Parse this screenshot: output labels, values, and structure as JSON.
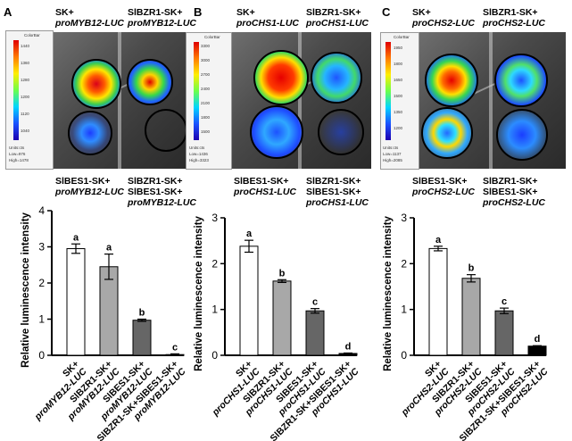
{
  "panels": [
    {
      "id": "A",
      "top_left": [
        "SK+",
        "proMYB12-LUC"
      ],
      "top_right": [
        "SlBZR1-SK+",
        "proMYB12-LUC"
      ],
      "bottom_left": [
        "SlBES1-SK+",
        "proMYB12-LUC"
      ],
      "bottom_right": [
        "SlBZR1-SK+",
        "SlBES1-SK+",
        "proMYB12-LUC"
      ],
      "colorbar": {
        "title": "ColorBar",
        "ticks": [
          "1440",
          "1360",
          "1280",
          "1200",
          "1120",
          "1040"
        ],
        "unit": "Units:cts",
        "low": "Low=976",
        "high": "High=1478"
      }
    },
    {
      "id": "B",
      "top_left": [
        "SK+",
        "proCHS1-LUC"
      ],
      "top_right": [
        "SlBZR1-SK+",
        "proCHS1-LUC"
      ],
      "bottom_left": [
        "SlBES1-SK+",
        "proCHS1-LUC"
      ],
      "bottom_right": [
        "SlBZR1-SK+",
        "SlBES1-SK+",
        "proCHS1-LUC"
      ],
      "colorbar": {
        "title": "ColorBar",
        "ticks": [
          "3300",
          "3000",
          "2700",
          "2400",
          "2100",
          "1800",
          "1500"
        ],
        "unit": "Units:cts",
        "low": "Low=1436",
        "high": "High=3323"
      }
    },
    {
      "id": "C",
      "top_left": [
        "SK+",
        "proCHS2-LUC"
      ],
      "top_right": [
        "SlBZR1-SK+",
        "proCHS2-LUC"
      ],
      "bottom_left": [
        "SlBES1-SK+",
        "proCHS2-LUC"
      ],
      "bottom_right": [
        "SlBZR1-SK+",
        "SlBES1-SK+",
        "proCHS2-LUC"
      ],
      "colorbar": {
        "title": "ColorBar",
        "ticks": [
          "1950",
          "1800",
          "1650",
          "1500",
          "1350",
          "1200"
        ],
        "unit": "Units:cts",
        "low": "Low=1137",
        "high": "High=2085"
      }
    }
  ],
  "chart_data": [
    {
      "type": "bar",
      "ylabel": "Relative luminescence intensity",
      "ylim": [
        0,
        4
      ],
      "yticks": [
        "0",
        "1",
        "2",
        "3",
        "4"
      ],
      "categories": [
        [
          "SK+",
          "proMYB12-LUC"
        ],
        [
          "SlBZR1-SK+",
          "proMYB12-LUC"
        ],
        [
          "SlBES1-SK+",
          "proMYB12-LUC"
        ],
        [
          "SlBZR1-SK+SlBES1-SK+",
          "proMYB12-LUC"
        ]
      ],
      "values": [
        2.95,
        2.45,
        0.97,
        0.02
      ],
      "errors": [
        0.13,
        0.35,
        0.03,
        0.02
      ],
      "letters": [
        "a",
        "a",
        "b",
        "c"
      ],
      "colors": [
        "#ffffff",
        "#a8a8a8",
        "#666666",
        "#000000"
      ]
    },
    {
      "type": "bar",
      "ylabel": "Relative luminescence intensity",
      "ylim": [
        0,
        3
      ],
      "yticks": [
        "0",
        "1",
        "2",
        "3"
      ],
      "categories": [
        [
          "SK+",
          "proCHS1-LUC"
        ],
        [
          "SlBZR1-SK+",
          "proCHS1-LUC"
        ],
        [
          "SlBES1-SK+",
          "proCHS1-LUC"
        ],
        [
          "SlBZR1-SK+SlBES1-SK+",
          "proCHS1-LUC"
        ]
      ],
      "values": [
        2.38,
        1.62,
        0.97,
        0.04
      ],
      "errors": [
        0.13,
        0.03,
        0.05,
        0.01
      ],
      "letters": [
        "a",
        "b",
        "c",
        "d"
      ],
      "colors": [
        "#ffffff",
        "#a8a8a8",
        "#666666",
        "#000000"
      ]
    },
    {
      "type": "bar",
      "ylabel": "Relative luminescence intensity",
      "ylim": [
        0,
        3
      ],
      "yticks": [
        "0",
        "1",
        "2",
        "3"
      ],
      "categories": [
        [
          "SK+",
          "proCHS2-LUC"
        ],
        [
          "SlBZR1-SK+",
          "proCHS2-LUC"
        ],
        [
          "SlBES1-SK+",
          "proCHS2-LUC"
        ],
        [
          "SlBZR1-SK+SlBES1-SK+",
          "proCHS2-LUC"
        ]
      ],
      "values": [
        2.33,
        1.68,
        0.97,
        0.2
      ],
      "errors": [
        0.05,
        0.08,
        0.06,
        0.01
      ],
      "letters": [
        "a",
        "b",
        "c",
        "d"
      ],
      "colors": [
        "#ffffff",
        "#a8a8a8",
        "#666666",
        "#000000"
      ]
    }
  ]
}
